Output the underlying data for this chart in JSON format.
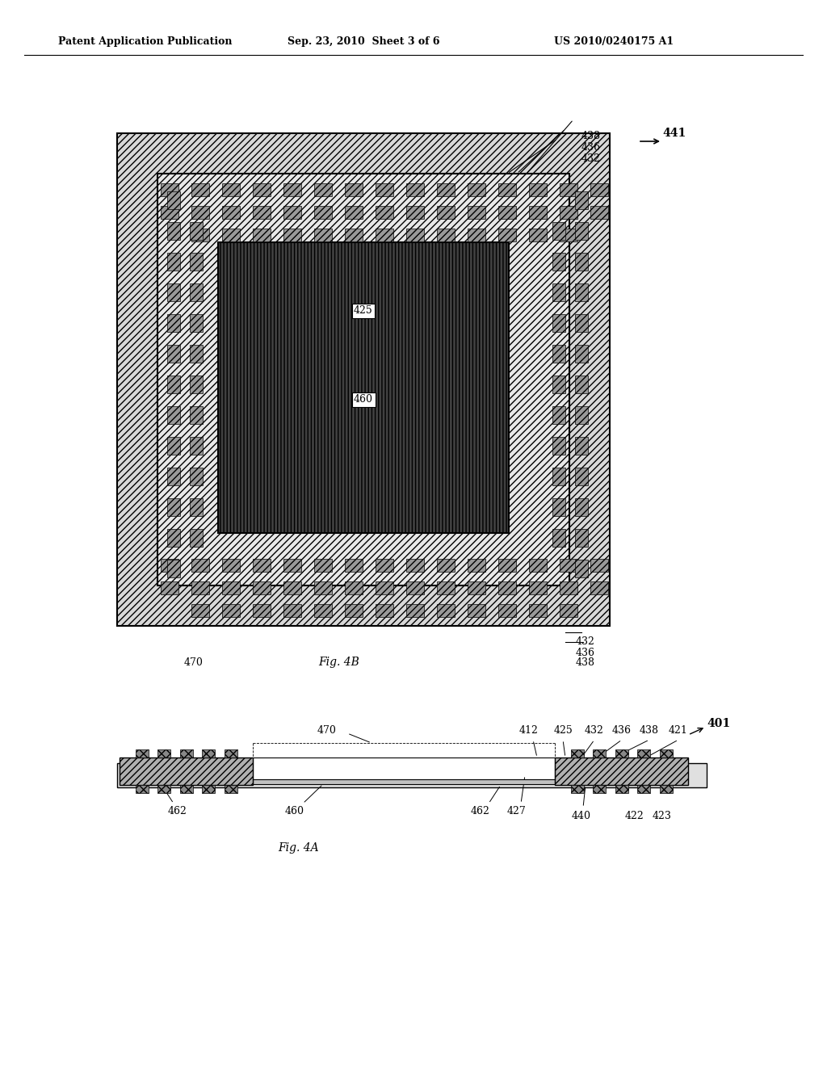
{
  "bg_color": "#ffffff",
  "header_left": "Patent Application Publication",
  "header_mid": "Sep. 23, 2010  Sheet 3 of 6",
  "header_right": "US 2010/0240175 A1",
  "fig4b_label": "Fig. 4B",
  "fig4a_label": "Fig. 4A",
  "label_470_4b": "470",
  "label_432_4b": "432",
  "label_436_4b": "436",
  "label_438_4b": "438",
  "label_441": "441",
  "label_438_top": "438",
  "label_436_top": "436",
  "label_432_top": "432",
  "label_425_4b": "425",
  "label_460_4b": "460",
  "label_470_4a": "470",
  "label_412": "412",
  "label_425_4a": "425",
  "label_432_4a": "432",
  "label_436_4a": "436",
  "label_438_4a": "438",
  "label_421": "421",
  "label_401": "401",
  "label_462_left": "462",
  "label_462_right": "462",
  "label_460_4a": "460",
  "label_427": "427",
  "label_440": "440",
  "label_422": "422",
  "label_423": "423",
  "hatch_light": "/",
  "hatch_dark": "x",
  "hatch_medium": "\\\\"
}
